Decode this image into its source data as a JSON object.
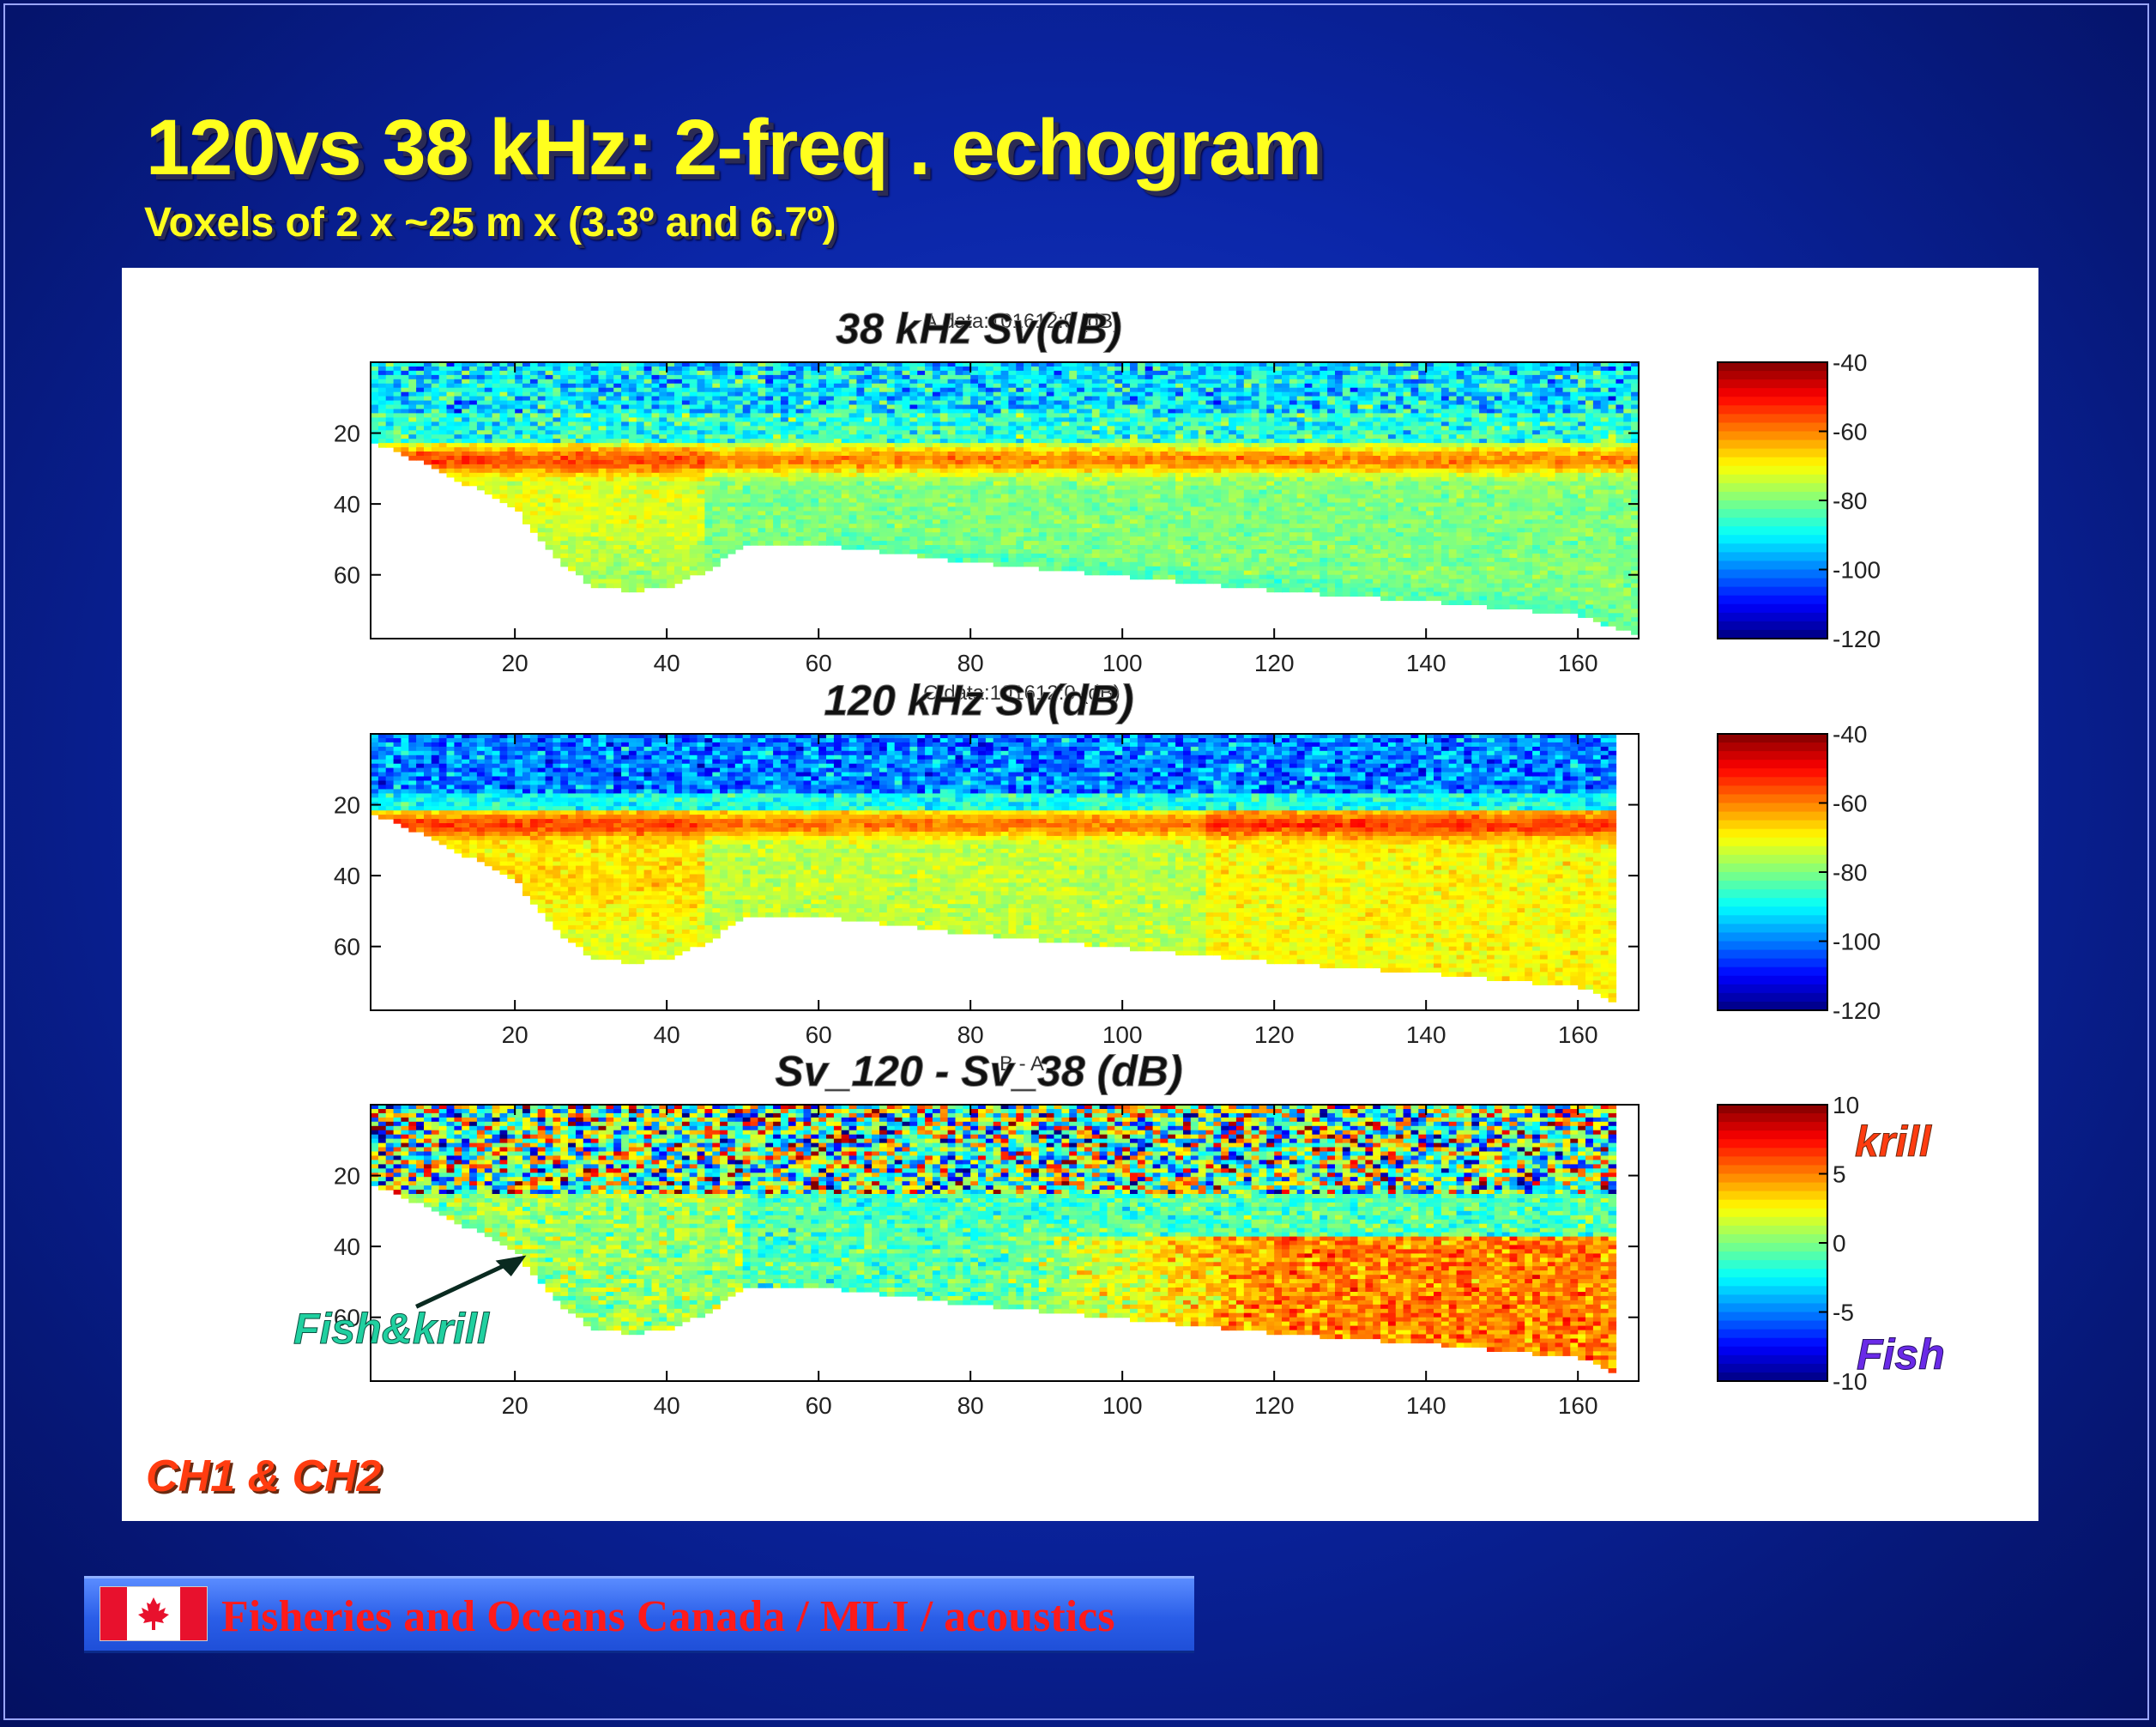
{
  "slide": {
    "title": "120vs 38 kHz: 2-freq . echogram",
    "subtitle": "Voxels of 2 x ~25 m x (3.3º and 6.7º)",
    "channel_label": "CH1 & CH2",
    "footer_text": "Fisheries and Oceans Canada / MLI / acoustics",
    "colors": {
      "title": "#ffff1e",
      "background": "#0b26a8",
      "channel_label": "#ff3c10",
      "footer_text": "#ff1a1a"
    },
    "icons": [
      "canada-flag-icon",
      "arrow-icon"
    ]
  },
  "chart_data": [
    {
      "type": "heatmap",
      "title": "38 kHz Sv(dB)",
      "overprint": "A.data:101612:0 (dB)",
      "x_ticks": [
        20,
        40,
        60,
        80,
        100,
        120,
        140,
        160
      ],
      "y_ticks": [
        20,
        40,
        60
      ],
      "xlim": [
        1,
        168
      ],
      "ylim": [
        0,
        78
      ],
      "y_reversed": true,
      "colorbar": {
        "ticks": [
          -40,
          -60,
          -80,
          -100,
          -120
        ],
        "range": [
          -120,
          -40
        ],
        "colormap": "jet"
      },
      "bottom_profile": {
        "x": [
          1,
          10,
          20,
          25,
          30,
          35,
          40,
          45,
          50,
          55,
          60,
          80,
          100,
          120,
          140,
          160,
          168
        ],
        "depth": [
          22,
          30,
          42,
          55,
          63,
          64,
          63,
          58,
          51,
          51,
          51,
          56,
          60,
          64,
          67,
          71,
          77
        ]
      },
      "features": [
        "surface noise 0-15 m, low Sv (-100 to -90 dB)",
        "strong scattering layer ~25-30 m (-55 to -60 dB)",
        "mid-water -70 to -80 dB"
      ]
    },
    {
      "type": "heatmap",
      "title": "120 kHz Sv(dB)",
      "overprint": "C:data:101612:0 (dB)",
      "x_ticks": [
        20,
        40,
        60,
        80,
        100,
        120,
        140,
        160
      ],
      "y_ticks": [
        20,
        40,
        60
      ],
      "xlim": [
        1,
        168
      ],
      "ylim": [
        0,
        78
      ],
      "y_reversed": true,
      "colorbar": {
        "ticks": [
          -40,
          -60,
          -80,
          -100,
          -120
        ],
        "range": [
          -120,
          -40
        ],
        "colormap": "jet"
      },
      "bottom_profile": {
        "x": [
          1,
          10,
          20,
          25,
          30,
          35,
          40,
          45,
          50,
          55,
          60,
          80,
          100,
          120,
          140,
          160,
          165
        ],
        "depth": [
          22,
          30,
          42,
          55,
          63,
          64,
          63,
          58,
          51,
          51,
          51,
          56,
          60,
          64,
          67,
          71,
          76
        ]
      },
      "features": [
        "surface noise 0-15 m, low Sv (-110 to -95 dB)",
        "scattering layer ~25 m (-60 dB)",
        "mid-water -65 to -75 dB"
      ]
    },
    {
      "type": "heatmap",
      "title": "Sv_120 - Sv_38 (dB)",
      "overprint": "B - A",
      "x_ticks": [
        20,
        40,
        60,
        80,
        100,
        120,
        140,
        160
      ],
      "y_ticks": [
        20,
        40,
        60
      ],
      "xlim": [
        1,
        168
      ],
      "ylim": [
        0,
        78
      ],
      "y_reversed": true,
      "colorbar": {
        "ticks": [
          10,
          5,
          0,
          -5,
          -10
        ],
        "range": [
          -10,
          10
        ],
        "colormap": "jet"
      },
      "colorbar_annotations": {
        "high": "krill",
        "low": "Fish"
      },
      "annotation": {
        "text": "Fish&krill",
        "arrow": true
      },
      "bottom_profile": {
        "x": [
          1,
          10,
          20,
          25,
          30,
          35,
          40,
          45,
          50,
          55,
          60,
          80,
          100,
          120,
          140,
          160,
          165
        ],
        "depth": [
          22,
          30,
          42,
          55,
          63,
          64,
          63,
          58,
          51,
          51,
          51,
          56,
          60,
          64,
          67,
          71,
          76
        ]
      },
      "features": [
        "surface noise 0-25 m, mixed -10 to +10 dB",
        "offshore deep layer 40-70 m positive difference (+5 to +10 dB, krill)",
        "inshore near 20-50 m values 0 to +3 dB"
      ]
    }
  ]
}
